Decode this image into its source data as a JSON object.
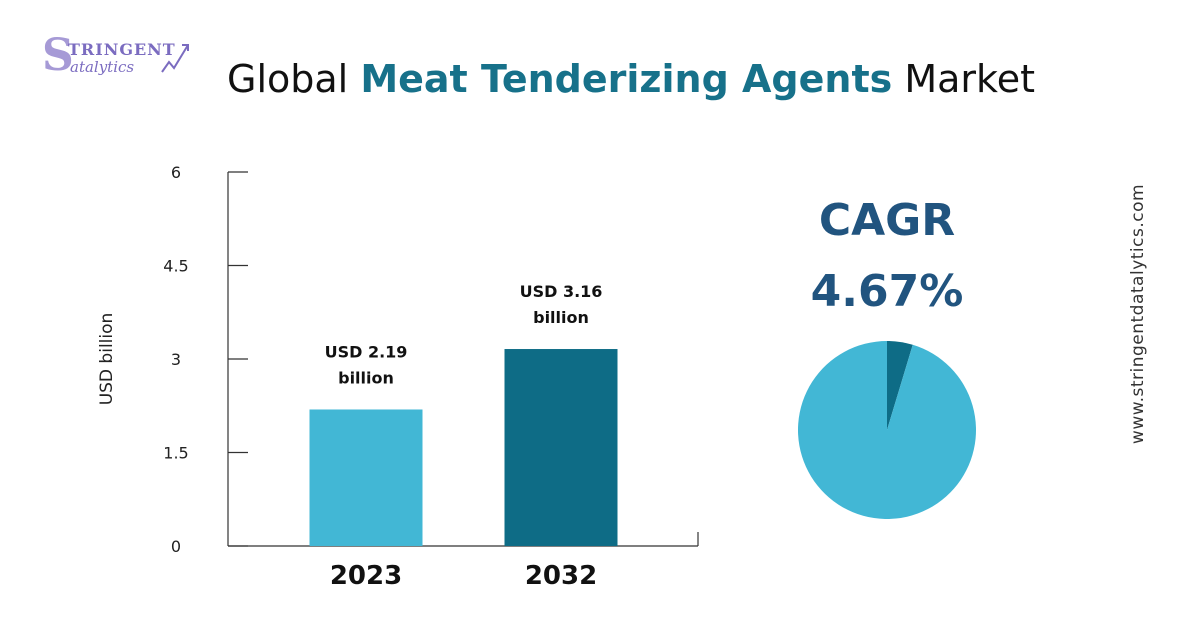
{
  "logo": {
    "initial": "S",
    "word1": "TRINGENT",
    "word2": "atalytics"
  },
  "title": {
    "prefix": "Global",
    "highlight": "Meat Tenderizing Agents",
    "suffix": "Market"
  },
  "chart_data": [
    {
      "type": "bar",
      "categories": [
        "2023",
        "2032"
      ],
      "values": [
        2.19,
        3.16
      ],
      "data_labels": [
        [
          "USD 2.19",
          "billion"
        ],
        [
          "USD 3.16",
          "billion"
        ]
      ],
      "ylabel": "USD billion",
      "yticks": [
        "0",
        "1.5",
        "3",
        "4.5",
        "6"
      ],
      "ytick_values": [
        0,
        1.5,
        3,
        4.5,
        6
      ],
      "ylim": [
        0,
        6
      ],
      "grid": false,
      "colors": [
        "#42b7d5",
        "#0e6c86"
      ]
    },
    {
      "type": "pie",
      "values": [
        4.67,
        95.33
      ],
      "colors": [
        "#0e6c86",
        "#42b7d5"
      ]
    }
  ],
  "cagr": {
    "label": "CAGR",
    "value": "4.67%"
  },
  "side_text": "www.stringentdatalytics.com",
  "colors": {
    "accent": "#17718a",
    "cagr": "#21547f",
    "bar_light": "#42b7d5",
    "bar_dark": "#0e6c86",
    "logo": "#7b6cc0"
  }
}
